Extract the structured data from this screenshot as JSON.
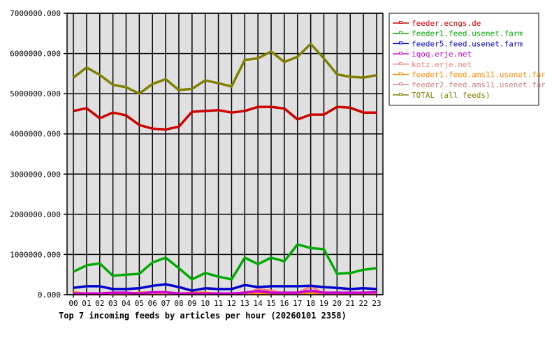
{
  "chart_data": {
    "type": "line",
    "title": "Top 7 incoming feeds by articles per hour (20260101 2358)",
    "xlabel": "",
    "ylabel": "",
    "ylim": [
      0,
      7000000
    ],
    "y_ticks": [
      "0.000",
      "1000000.000",
      "2000000.000",
      "3000000.000",
      "4000000.000",
      "5000000.000",
      "6000000.000",
      "7000000.000"
    ],
    "grid": true,
    "legend_position": "right",
    "categories": [
      "00",
      "01",
      "02",
      "03",
      "04",
      "05",
      "06",
      "07",
      "08",
      "09",
      "10",
      "11",
      "12",
      "13",
      "14",
      "15",
      "16",
      "17",
      "18",
      "19",
      "20",
      "21",
      "22",
      "23"
    ],
    "series": [
      {
        "name": "feeder.ecngs.de",
        "color": "#cc0000",
        "values": [
          4570000,
          4640000,
          4390000,
          4530000,
          4460000,
          4220000,
          4130000,
          4110000,
          4180000,
          4550000,
          4570000,
          4590000,
          4530000,
          4570000,
          4670000,
          4670000,
          4630000,
          4360000,
          4480000,
          4480000,
          4670000,
          4650000,
          4530000,
          4530000
        ]
      },
      {
        "name": "feeder1.feed.usenet.farm",
        "color": "#00aa00",
        "values": [
          570000,
          730000,
          780000,
          470000,
          500000,
          520000,
          800000,
          920000,
          660000,
          380000,
          540000,
          450000,
          380000,
          920000,
          760000,
          920000,
          830000,
          1250000,
          1160000,
          1130000,
          520000,
          540000,
          620000,
          660000
        ]
      },
      {
        "name": "feeder5.feed.usenet.farm",
        "color": "#0000cc",
        "values": [
          170000,
          210000,
          210000,
          140000,
          140000,
          160000,
          220000,
          260000,
          190000,
          100000,
          160000,
          140000,
          140000,
          240000,
          190000,
          210000,
          210000,
          210000,
          220000,
          190000,
          170000,
          140000,
          160000,
          140000
        ]
      },
      {
        "name": "iqoq.erje.net",
        "color": "#cc00cc",
        "values": [
          30000,
          30000,
          30000,
          50000,
          50000,
          30000,
          60000,
          60000,
          30000,
          30000,
          30000,
          30000,
          30000,
          50000,
          90000,
          50000,
          50000,
          50000,
          100000,
          50000,
          50000,
          50000,
          50000,
          60000
        ]
      },
      {
        "name": "kotz.erje.net",
        "color": "#ff8080",
        "values": [
          10000,
          10000,
          10000,
          10000,
          10000,
          10000,
          10000,
          10000,
          10000,
          10000,
          10000,
          10000,
          10000,
          10000,
          130000,
          100000,
          10000,
          10000,
          220000,
          10000,
          10000,
          10000,
          10000,
          10000
        ]
      },
      {
        "name": "feeder1.feed.ams11.usenet.farm",
        "color": "#ff8800",
        "values": [
          60000,
          20000,
          20000,
          10000,
          10000,
          50000,
          50000,
          20000,
          20000,
          50000,
          50000,
          20000,
          20000,
          20000,
          10000,
          10000,
          20000,
          20000,
          20000,
          20000,
          50000,
          20000,
          20000,
          10000
        ]
      },
      {
        "name": "feeder2.feed.ams11.usenet.farm",
        "color": "#cc8080",
        "values": [
          30000,
          20000,
          20000,
          30000,
          30000,
          30000,
          30000,
          30000,
          30000,
          30000,
          30000,
          30000,
          30000,
          30000,
          30000,
          30000,
          30000,
          30000,
          30000,
          30000,
          30000,
          30000,
          30000,
          30000
        ]
      },
      {
        "name": "TOTAL (all feeds)",
        "color": "#808000",
        "values": [
          5400000,
          5650000,
          5470000,
          5220000,
          5160000,
          5000000,
          5240000,
          5360000,
          5090000,
          5120000,
          5330000,
          5260000,
          5180000,
          5840000,
          5880000,
          6050000,
          5790000,
          5920000,
          6240000,
          5880000,
          5480000,
          5420000,
          5400000,
          5460000
        ]
      }
    ]
  },
  "legend": {
    "items": [
      {
        "label": "feeder.ecngs.de",
        "color": "#cc0000"
      },
      {
        "label": "feeder1.feed.usenet.farm",
        "color": "#00aa00"
      },
      {
        "label": "feeder5.feed.usenet.farm",
        "color": "#0000cc"
      },
      {
        "label": "iqoq.erje.net",
        "color": "#cc00cc"
      },
      {
        "label": "kotz.erje.net",
        "color": "#ff8080"
      },
      {
        "label": "feeder1.feed.ams11.usenet.farm",
        "color": "#ff8800"
      },
      {
        "label": "feeder2.feed.ams11.usenet.farm",
        "color": "#cc8080"
      },
      {
        "label": "TOTAL (all feeds)",
        "color": "#808000"
      }
    ]
  },
  "colors": {
    "plot_background": "#e0e0e0",
    "grid": "#000000",
    "axis": "#000000"
  }
}
